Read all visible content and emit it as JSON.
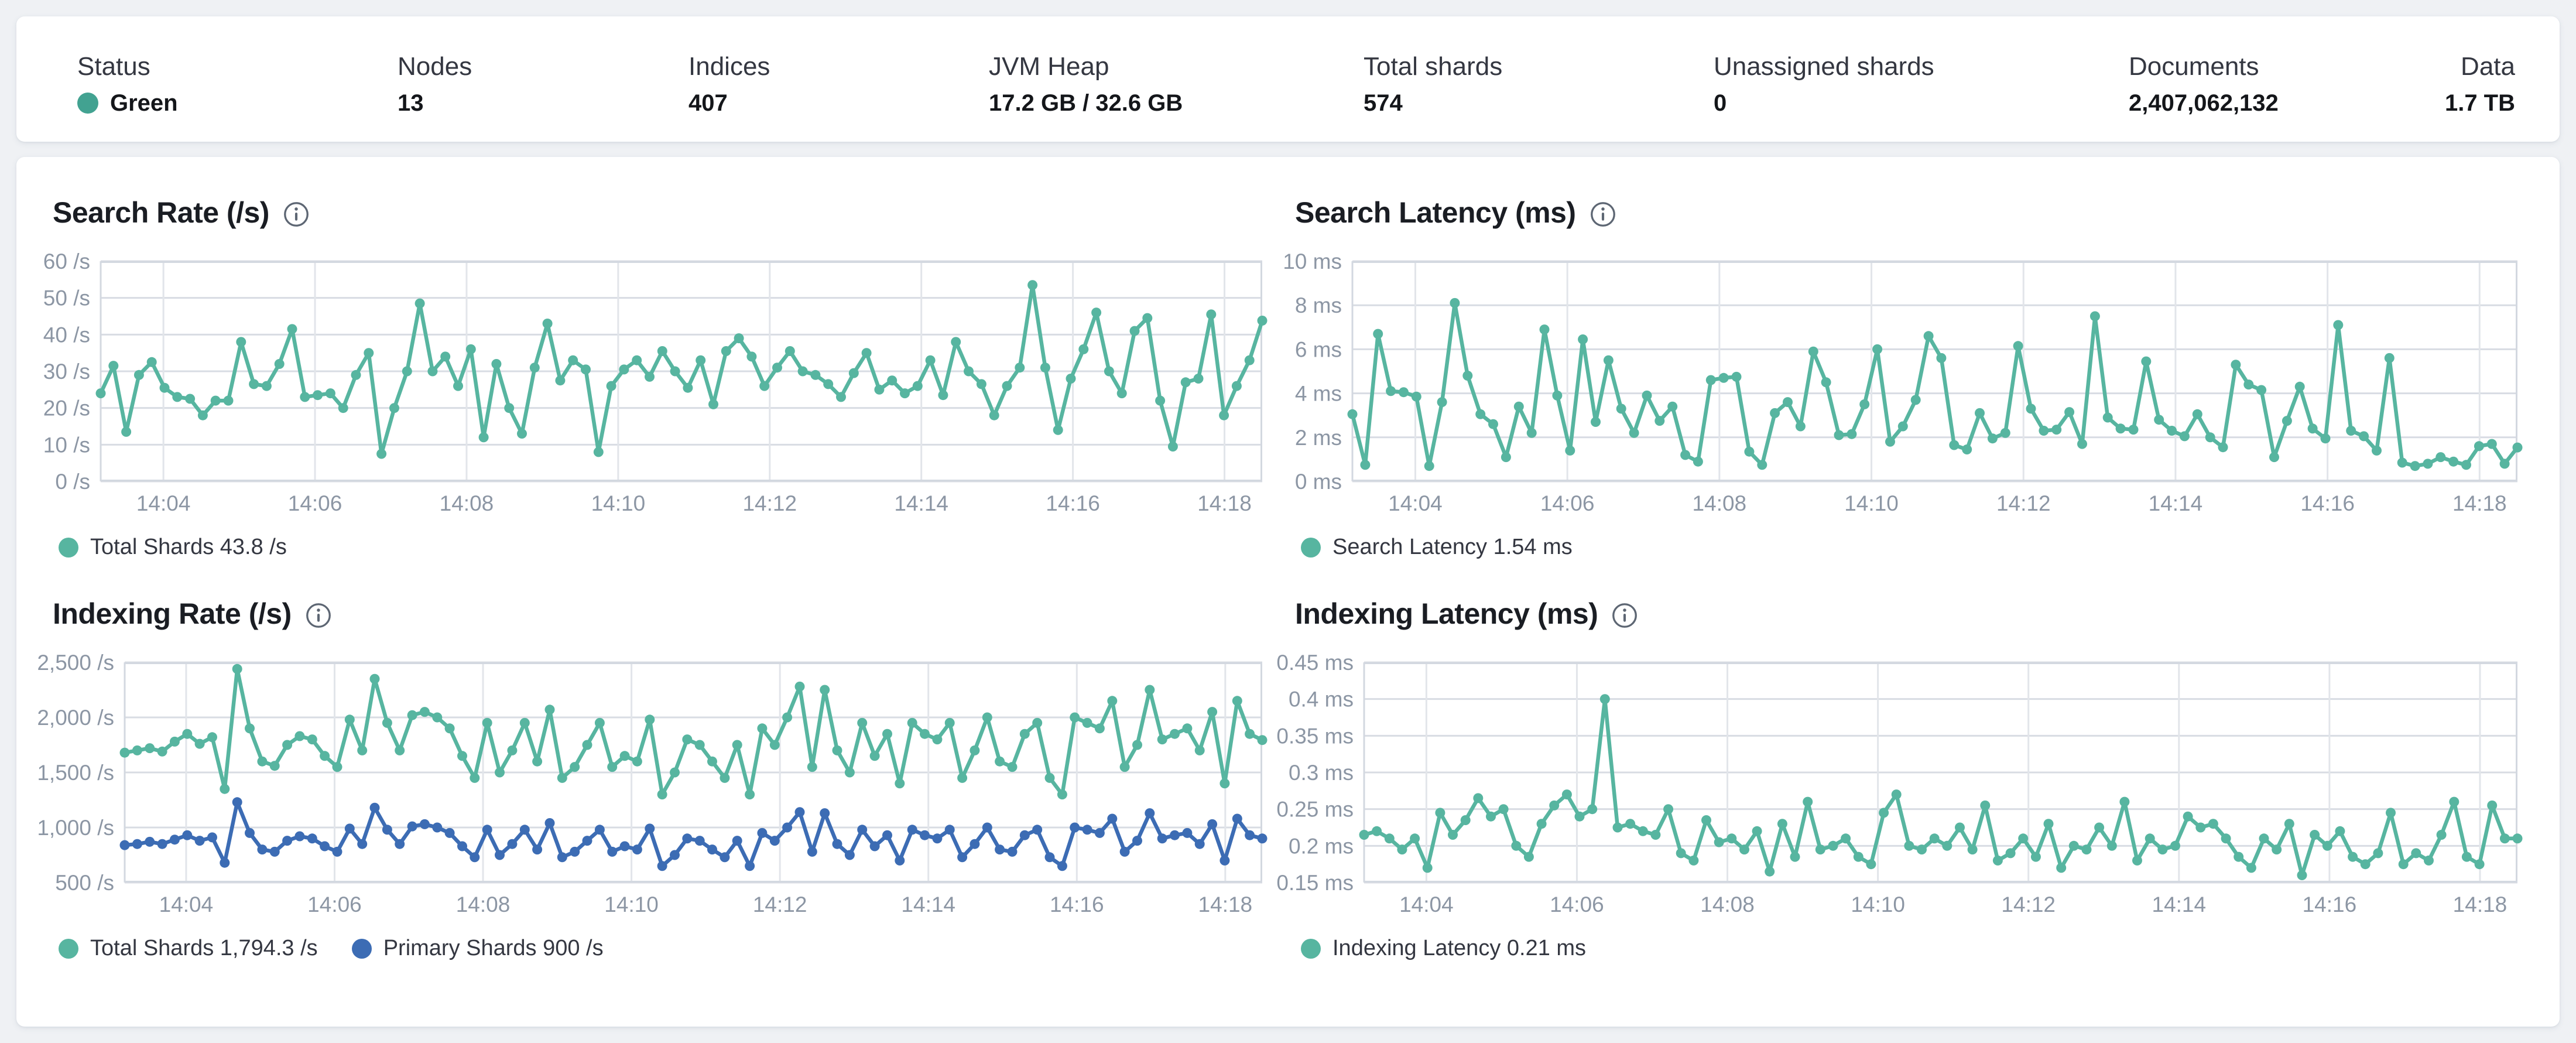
{
  "header": {
    "status_color": "#42a291",
    "stats": [
      {
        "label": "Status",
        "value": "Green"
      },
      {
        "label": "Nodes",
        "value": "13"
      },
      {
        "label": "Indices",
        "value": "407"
      },
      {
        "label": "JVM Heap",
        "value": "17.2 GB / 32.6 GB"
      },
      {
        "label": "Total shards",
        "value": "574"
      },
      {
        "label": "Unassigned shards",
        "value": "0"
      },
      {
        "label": "Documents",
        "value": "2,407,062,132"
      },
      {
        "label": "Data",
        "value": "1.7 TB"
      }
    ]
  },
  "icons": {
    "info": "info-icon"
  },
  "colors": {
    "teal": "#57b5a0",
    "blue": "#3c6cb4",
    "grid": "#dde1e7",
    "axis_text": "#8c96a4"
  },
  "chart_data": [
    {
      "type": "line",
      "title": "Search Rate (/s)",
      "ylim": [
        0,
        60
      ],
      "grid": true,
      "legend_position": "bottom",
      "yticks": [
        {
          "v": 0,
          "label": "0 /s"
        },
        {
          "v": 10,
          "label": "10 /s"
        },
        {
          "v": 20,
          "label": "20 /s"
        },
        {
          "v": 30,
          "label": "30 /s"
        },
        {
          "v": 40,
          "label": "40 /s"
        },
        {
          "v": 50,
          "label": "50 /s"
        },
        {
          "v": 60,
          "label": "60 /s"
        }
      ],
      "xticks": [
        "14:04",
        "14:06",
        "14:08",
        "14:10",
        "14:12",
        "14:14",
        "14:16",
        "14:18"
      ],
      "legend": [
        {
          "label": "Total Shards 43.8 /s",
          "color": "#57b5a0"
        }
      ],
      "series": [
        {
          "name": "Total Shards",
          "color": "#57b5a0",
          "values": [
            24,
            31.5,
            13.5,
            29,
            32.5,
            25.5,
            23,
            22.5,
            18,
            22,
            22,
            38,
            26.5,
            26,
            32,
            41.5,
            23,
            23.5,
            24,
            20,
            29,
            35,
            7.5,
            20,
            30,
            48.5,
            30,
            34,
            26,
            36,
            12,
            32,
            20,
            13,
            31,
            43,
            27.5,
            33,
            30.5,
            8,
            26,
            30.5,
            33,
            28.5,
            35.5,
            30,
            25.5,
            33,
            21,
            35.5,
            39,
            34,
            26,
            31,
            35.5,
            30,
            29,
            26.5,
            23,
            29.5,
            35,
            25,
            27.5,
            24,
            26,
            33,
            23.5,
            38,
            30,
            26.5,
            18,
            26,
            31,
            53.5,
            31,
            14,
            28,
            36,
            46,
            30,
            24,
            41,
            44.5,
            22,
            9.5,
            27,
            28,
            45.5,
            18,
            26,
            33,
            43.8
          ]
        }
      ]
    },
    {
      "type": "line",
      "title": "Search Latency (ms)",
      "ylim": [
        0,
        10
      ],
      "grid": true,
      "legend_position": "bottom",
      "yticks": [
        {
          "v": 0,
          "label": "0 ms"
        },
        {
          "v": 2,
          "label": "2 ms"
        },
        {
          "v": 4,
          "label": "4 ms"
        },
        {
          "v": 6,
          "label": "6 ms"
        },
        {
          "v": 8,
          "label": "8 ms"
        },
        {
          "v": 10,
          "label": "10 ms"
        }
      ],
      "xticks": [
        "14:04",
        "14:06",
        "14:08",
        "14:10",
        "14:12",
        "14:14",
        "14:16",
        "14:18"
      ],
      "legend": [
        {
          "label": "Search Latency 1.54 ms",
          "color": "#57b5a0"
        }
      ],
      "series": [
        {
          "name": "Search Latency",
          "color": "#57b5a0",
          "values": [
            3.05,
            0.75,
            6.7,
            4.1,
            4.05,
            3.85,
            0.7,
            3.6,
            8.1,
            4.8,
            3.05,
            2.6,
            1.1,
            3.4,
            2.2,
            6.9,
            3.9,
            1.4,
            6.45,
            2.7,
            5.5,
            3.3,
            2.2,
            3.9,
            2.75,
            3.4,
            1.2,
            0.9,
            4.6,
            4.7,
            4.75,
            1.35,
            0.75,
            3.1,
            3.6,
            2.5,
            5.9,
            4.5,
            2.1,
            2.15,
            3.5,
            6.0,
            1.8,
            2.5,
            3.7,
            6.6,
            5.6,
            1.65,
            1.45,
            3.1,
            1.95,
            2.2,
            6.15,
            3.3,
            2.3,
            2.35,
            3.15,
            1.7,
            7.5,
            2.9,
            2.4,
            2.35,
            5.45,
            2.8,
            2.3,
            2.05,
            3.05,
            2.0,
            1.55,
            5.3,
            4.4,
            4.15,
            1.1,
            2.75,
            4.3,
            2.4,
            1.95,
            7.1,
            2.3,
            2.05,
            1.4,
            5.6,
            0.85,
            0.7,
            0.8,
            1.1,
            0.9,
            0.75,
            1.6,
            1.7,
            0.8,
            1.54
          ]
        }
      ]
    },
    {
      "type": "line",
      "title": "Indexing Rate (/s)",
      "ylim": [
        500,
        2500
      ],
      "grid": true,
      "legend_position": "bottom",
      "yticks": [
        {
          "v": 500,
          "label": "500 /s"
        },
        {
          "v": 1000,
          "label": "1,000 /s"
        },
        {
          "v": 1500,
          "label": "1,500 /s"
        },
        {
          "v": 2000,
          "label": "2,000 /s"
        },
        {
          "v": 2500,
          "label": "2,500 /s"
        }
      ],
      "xticks": [
        "14:04",
        "14:06",
        "14:08",
        "14:10",
        "14:12",
        "14:14",
        "14:16",
        "14:18"
      ],
      "legend": [
        {
          "label": "Total Shards 1,794.3 /s",
          "color": "#57b5a0"
        },
        {
          "label": "Primary Shards 900 /s",
          "color": "#3c6cb4"
        }
      ],
      "series": [
        {
          "name": "Total Shards",
          "color": "#57b5a0",
          "values": [
            1680,
            1700,
            1720,
            1690,
            1780,
            1850,
            1760,
            1820,
            1350,
            2440,
            1900,
            1600,
            1560,
            1750,
            1830,
            1800,
            1650,
            1550,
            1980,
            1700,
            2350,
            1950,
            1700,
            2020,
            2050,
            2000,
            1900,
            1650,
            1450,
            1950,
            1500,
            1700,
            1950,
            1600,
            2070,
            1450,
            1550,
            1750,
            1950,
            1550,
            1650,
            1600,
            1980,
            1300,
            1500,
            1800,
            1750,
            1600,
            1450,
            1750,
            1300,
            1900,
            1750,
            2000,
            2280,
            1550,
            2250,
            1700,
            1500,
            1950,
            1650,
            1850,
            1400,
            1950,
            1850,
            1800,
            1950,
            1450,
            1700,
            2000,
            1600,
            1550,
            1850,
            1950,
            1450,
            1300,
            2000,
            1950,
            1900,
            2150,
            1550,
            1750,
            2250,
            1800,
            1850,
            1900,
            1700,
            2050,
            1400,
            2150,
            1850,
            1794.3
          ]
        },
        {
          "name": "Primary Shards",
          "color": "#3c6cb4",
          "values": [
            840,
            850,
            870,
            850,
            890,
            930,
            880,
            910,
            680,
            1230,
            950,
            800,
            780,
            880,
            920,
            900,
            830,
            780,
            990,
            850,
            1180,
            980,
            850,
            1010,
            1030,
            1000,
            950,
            830,
            730,
            980,
            750,
            850,
            980,
            800,
            1040,
            730,
            780,
            880,
            980,
            780,
            830,
            800,
            990,
            650,
            750,
            900,
            880,
            800,
            730,
            880,
            650,
            950,
            880,
            1000,
            1140,
            780,
            1130,
            850,
            750,
            980,
            830,
            930,
            700,
            980,
            930,
            900,
            980,
            730,
            850,
            1000,
            800,
            780,
            930,
            980,
            730,
            650,
            1000,
            980,
            950,
            1080,
            780,
            880,
            1130,
            900,
            930,
            950,
            850,
            1030,
            700,
            1080,
            930,
            900
          ]
        }
      ]
    },
    {
      "type": "line",
      "title": "Indexing Latency (ms)",
      "ylim": [
        0.15,
        0.45
      ],
      "grid": true,
      "legend_position": "bottom",
      "yticks": [
        {
          "v": 0.15,
          "label": "0.15 ms"
        },
        {
          "v": 0.2,
          "label": "0.2 ms"
        },
        {
          "v": 0.25,
          "label": "0.25 ms"
        },
        {
          "v": 0.3,
          "label": "0.3 ms"
        },
        {
          "v": 0.35,
          "label": "0.35 ms"
        },
        {
          "v": 0.4,
          "label": "0.4 ms"
        },
        {
          "v": 0.45,
          "label": "0.45 ms"
        }
      ],
      "xticks": [
        "14:04",
        "14:06",
        "14:08",
        "14:10",
        "14:12",
        "14:14",
        "14:16",
        "14:18"
      ],
      "legend": [
        {
          "label": "Indexing Latency 0.21 ms",
          "color": "#57b5a0"
        }
      ],
      "series": [
        {
          "name": "Indexing Latency",
          "color": "#57b5a0",
          "values": [
            0.215,
            0.22,
            0.21,
            0.195,
            0.21,
            0.17,
            0.245,
            0.215,
            0.235,
            0.265,
            0.24,
            0.25,
            0.2,
            0.185,
            0.23,
            0.255,
            0.27,
            0.24,
            0.25,
            0.4,
            0.225,
            0.23,
            0.22,
            0.215,
            0.25,
            0.19,
            0.18,
            0.235,
            0.205,
            0.21,
            0.195,
            0.22,
            0.165,
            0.23,
            0.185,
            0.26,
            0.195,
            0.2,
            0.21,
            0.185,
            0.175,
            0.245,
            0.27,
            0.2,
            0.195,
            0.21,
            0.2,
            0.225,
            0.195,
            0.255,
            0.18,
            0.19,
            0.21,
            0.185,
            0.23,
            0.17,
            0.2,
            0.195,
            0.225,
            0.2,
            0.26,
            0.18,
            0.21,
            0.195,
            0.2,
            0.24,
            0.225,
            0.23,
            0.21,
            0.185,
            0.17,
            0.21,
            0.195,
            0.23,
            0.16,
            0.215,
            0.2,
            0.22,
            0.185,
            0.175,
            0.19,
            0.245,
            0.175,
            0.19,
            0.18,
            0.215,
            0.26,
            0.185,
            0.175,
            0.255,
            0.21,
            0.21
          ]
        }
      ]
    }
  ]
}
